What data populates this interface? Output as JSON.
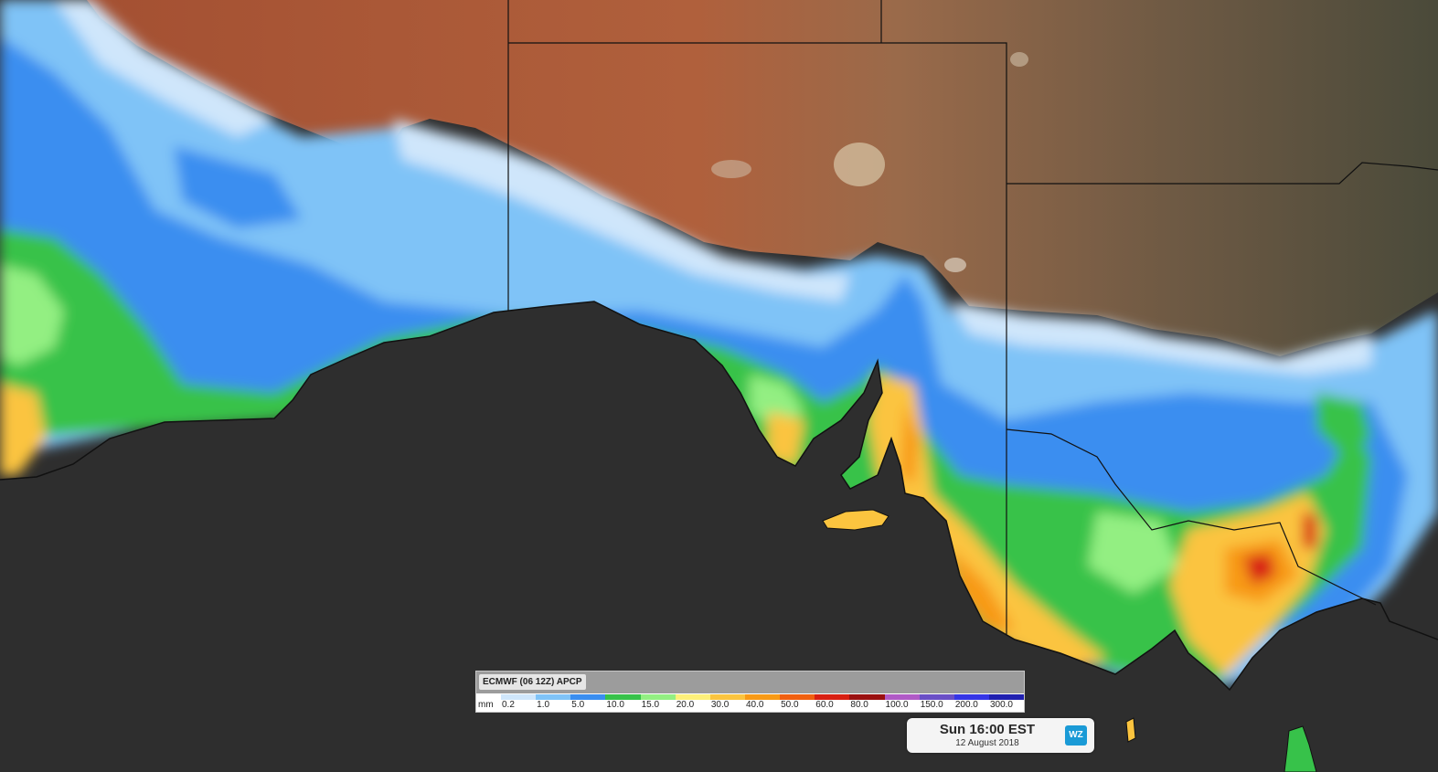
{
  "map": {
    "region": "South-eastern Australia and Southern Ocean",
    "colors": {
      "ocean": "#2e2e2e",
      "land": "#a85a3a",
      "borders": "#111111"
    }
  },
  "legend": {
    "title": "ECMWF (06 12Z) APCP",
    "unit": "mm",
    "stops": [
      {
        "label": "0.2",
        "color": "#cfe6fb"
      },
      {
        "label": "1.0",
        "color": "#7fc3f7"
      },
      {
        "label": "5.0",
        "color": "#3a8ef0"
      },
      {
        "label": "10.0",
        "color": "#37c24a"
      },
      {
        "label": "15.0",
        "color": "#93ef82"
      },
      {
        "label": "20.0",
        "color": "#fdf07a"
      },
      {
        "label": "30.0",
        "color": "#fbc43f"
      },
      {
        "label": "40.0",
        "color": "#f89a16"
      },
      {
        "label": "50.0",
        "color": "#f06010"
      },
      {
        "label": "60.0",
        "color": "#d81f12"
      },
      {
        "label": "80.0",
        "color": "#9a1010"
      },
      {
        "label": "100.0",
        "color": "#b05ac6"
      },
      {
        "label": "150.0",
        "color": "#6a4fc6"
      },
      {
        "label": "200.0",
        "color": "#3535e6"
      },
      {
        "label": "300.0",
        "color": "#2020b0"
      }
    ]
  },
  "timebox": {
    "time": "Sun 16:00 EST",
    "date": "12 August 2018",
    "logo": "WZ"
  }
}
